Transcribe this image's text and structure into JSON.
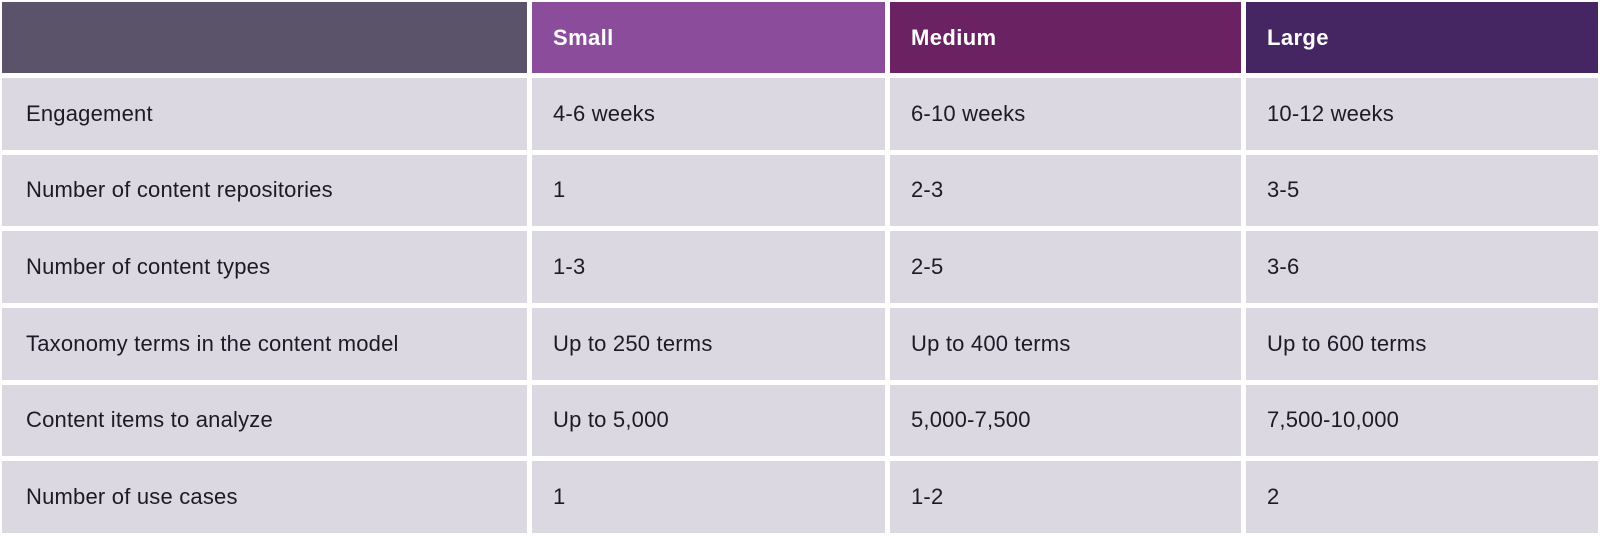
{
  "header": {
    "cells": [
      {
        "label": "",
        "bg": "#5b536a"
      },
      {
        "label": "Small",
        "bg": "#8b4c9c"
      },
      {
        "label": "Medium",
        "bg": "#6a2263"
      },
      {
        "label": "Large",
        "bg": "#452663"
      }
    ]
  },
  "rows": [
    {
      "label": "Engagement",
      "values": [
        "4-6 weeks",
        "6-10 weeks",
        "10-12 weeks"
      ]
    },
    {
      "label": "Number of content repositories",
      "values": [
        "1",
        "2-3",
        "3-5"
      ]
    },
    {
      "label": "Number of content types",
      "values": [
        "1-3",
        "2-5",
        "3-6"
      ]
    },
    {
      "label": "Taxonomy terms in the content model",
      "values": [
        "Up to 250 terms",
        "Up to 400 terms",
        "Up to 600 terms"
      ]
    },
    {
      "label": "Content items to analyze",
      "values": [
        "Up to 5,000",
        "5,000-7,500",
        "7,500-10,000"
      ]
    },
    {
      "label": "Number of use cases",
      "values": [
        "1",
        "1-2",
        "2"
      ]
    }
  ],
  "colors": {
    "corner_header_bg": "#5b536a",
    "small_header_bg": "#8b4c9c",
    "medium_header_bg": "#6a2263",
    "large_header_bg": "#452663",
    "body_cell_bg": "#dbd8e2",
    "body_text": "#1d1a26",
    "header_text": "#ffffff",
    "gutter": "#ffffff"
  },
  "chart_data": {
    "type": "table",
    "columns": [
      "",
      "Small",
      "Medium",
      "Large"
    ],
    "rows": [
      [
        "Engagement",
        "4-6 weeks",
        "6-10 weeks",
        "10-12 weeks"
      ],
      [
        "Number of content repositories",
        "1",
        "2-3",
        "3-5"
      ],
      [
        "Number of content types",
        "1-3",
        "2-5",
        "3-6"
      ],
      [
        "Taxonomy terms in the content model",
        "Up to 250 terms",
        "Up to 400 terms",
        "Up to 600 terms"
      ],
      [
        "Content items to analyze",
        "Up to 5,000",
        "5,000-7,500",
        "7,500-10,000"
      ],
      [
        "Number of use cases",
        "1",
        "1-2",
        "2"
      ]
    ]
  }
}
